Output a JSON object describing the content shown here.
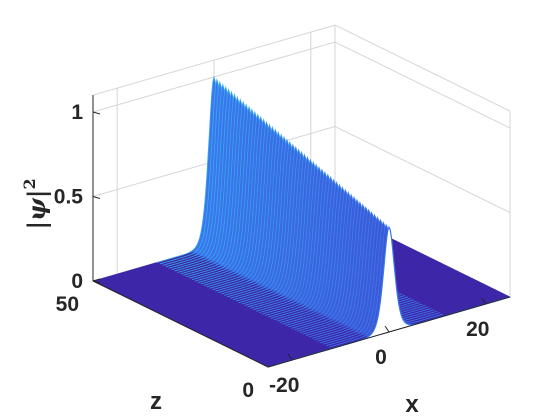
{
  "chart_data": {
    "type": "surface",
    "title": "",
    "xlabel": "x",
    "ylabel": "z",
    "zlabel_parts": [
      "|",
      "ψ",
      "|",
      "2"
    ],
    "x_range": [
      -25,
      25
    ],
    "z_range": [
      0,
      50
    ],
    "value_range": [
      0,
      1.1
    ],
    "x_ticks": [
      {
        "value": -20,
        "label": "-20"
      },
      {
        "value": 0,
        "label": "0"
      },
      {
        "value": 20,
        "label": "20"
      }
    ],
    "z_ticks": [
      {
        "value": 0,
        "label": "0"
      },
      {
        "value": 50,
        "label": "50"
      }
    ],
    "value_ticks": [
      {
        "value": 0,
        "label": "0"
      },
      {
        "value": 0.5,
        "label": "0.5"
      },
      {
        "value": 1,
        "label": "1"
      }
    ],
    "profile": {
      "description": "sech-squared soliton ridge along z",
      "center_x": 0,
      "peak_at_z0": 0.62,
      "peak_at_z50": 1.0,
      "width": 1.5
    },
    "grid": true,
    "colors": {
      "low": "#3e26a8",
      "mid": "#3b76f0",
      "high": "#33c1e6",
      "box_line": "#d6d6d6",
      "axis_line": "#262626"
    }
  }
}
